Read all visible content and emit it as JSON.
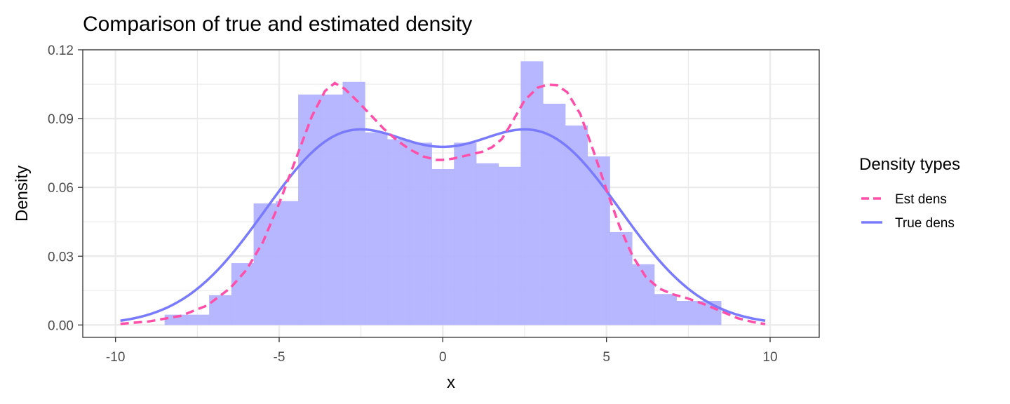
{
  "colors": {
    "histogram_fill": "#b3b3ff",
    "true_line": "#7a7aff",
    "est_line": "#ff4fa8",
    "grid": "#ebebeb",
    "panel_border": "#333333"
  },
  "chart_data": {
    "type": "area",
    "title": "Comparison of true and estimated density",
    "xlabel": "x",
    "ylabel": "Density",
    "xlim": [
      -11.0,
      11.5
    ],
    "ylim": [
      -0.0054,
      0.12
    ],
    "x_ticks": [
      -10,
      -5,
      0,
      5,
      10
    ],
    "x_tick_labels": [
      "-10",
      "-5",
      "0",
      "5",
      "10"
    ],
    "y_ticks": [
      0.0,
      0.03,
      0.06,
      0.09,
      0.12
    ],
    "y_tick_labels": [
      "0.00",
      "0.03",
      "0.06",
      "0.09",
      "0.12"
    ],
    "grid": true,
    "legend": {
      "title": "Density types",
      "position": "right",
      "entries": [
        "Est dens",
        "True dens"
      ]
    },
    "histogram": {
      "bin_start": -8.5,
      "bin_width": 0.68,
      "densities": [
        0.0045,
        0.0045,
        0.013,
        0.027,
        0.053,
        0.054,
        0.1005,
        0.1005,
        0.106,
        0.084,
        0.081,
        0.0795,
        0.068,
        0.0795,
        0.0705,
        0.069,
        0.115,
        0.0965,
        0.087,
        0.0735,
        0.0405,
        0.0265,
        0.0135,
        0.0105,
        0.0105
      ]
    },
    "series": [
      {
        "name": "Est dens",
        "style": "dashed",
        "x": [
          -9.85,
          -9,
          -8,
          -7.2,
          -6.5,
          -6,
          -5.5,
          -5,
          -4.5,
          -4,
          -3.6,
          -3.3,
          -3.0,
          -2.6,
          -2.2,
          -1.8,
          -1.4,
          -1.0,
          -0.6,
          -0.2,
          0.0,
          0.3,
          0.6,
          0.9,
          1.2,
          1.5,
          1.8,
          2.1,
          2.5,
          2.9,
          3.2,
          3.5,
          3.8,
          4.2,
          4.6,
          5.0,
          5.4,
          5.8,
          6.2,
          6.6,
          7.0,
          7.5,
          8.0,
          8.5,
          9.0,
          9.5,
          9.85
        ],
        "y": [
          0.0005,
          0.0015,
          0.004,
          0.0085,
          0.016,
          0.024,
          0.036,
          0.053,
          0.072,
          0.091,
          0.102,
          0.1055,
          0.103,
          0.0975,
          0.0915,
          0.0855,
          0.0805,
          0.0765,
          0.0735,
          0.072,
          0.072,
          0.0725,
          0.0735,
          0.0745,
          0.0755,
          0.0775,
          0.081,
          0.088,
          0.098,
          0.1035,
          0.1048,
          0.1045,
          0.1015,
          0.092,
          0.076,
          0.059,
          0.043,
          0.03,
          0.021,
          0.016,
          0.0135,
          0.0115,
          0.009,
          0.006,
          0.003,
          0.0012,
          0.0004
        ]
      },
      {
        "name": "True dens",
        "style": "solid"
      }
    ]
  }
}
